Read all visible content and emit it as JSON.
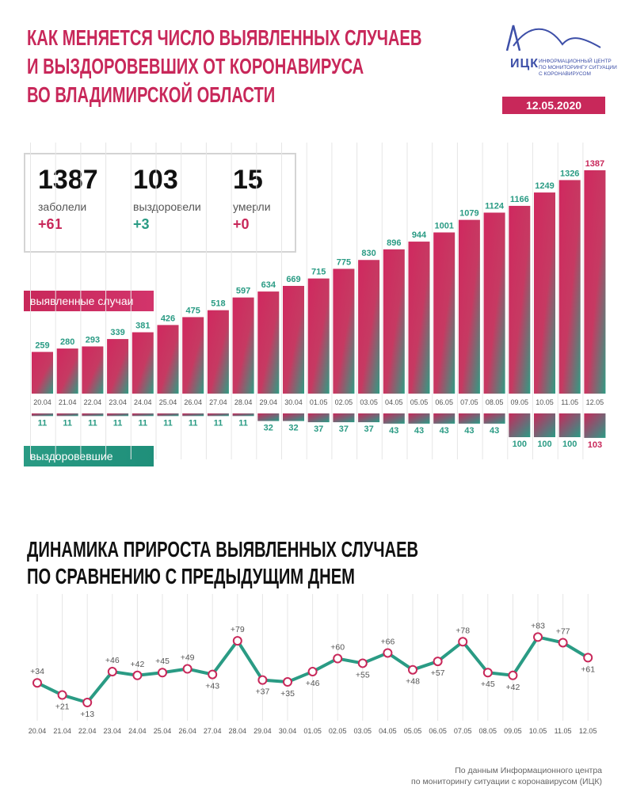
{
  "header": {
    "title_lines": [
      "КАК МЕНЯЕТСЯ ЧИСЛО ВЫЯВЛЕННЫХ СЛУЧАЕВ",
      "И ВЫЗДОРОВЕВШИХ ОТ КОРОНАВИРУСА",
      "ВО ВЛАДИМИРСКОЙ ОБЛАСТИ"
    ],
    "logo_text": "ИЦК",
    "logo_sub_lines": [
      "ИНФОРМАЦИОННЫЙ ЦЕНТР",
      "ПО МОНИТОРИНГУ СИТУАЦИИ",
      "С КОРОНАВИРУСОМ"
    ],
    "date": "12.05.2020"
  },
  "stats": [
    {
      "value": "1387",
      "label": "заболели",
      "delta": "+61"
    },
    {
      "value": "103",
      "label": "выздоровели",
      "delta": "+3"
    },
    {
      "value": "15",
      "label": "умерли",
      "delta": "+0"
    }
  ],
  "legend": {
    "cases": "выявленные случаи",
    "recovered": "выздоровевшие"
  },
  "section2": {
    "title_lines": [
      "ДИНАМИКА ПРИРОСТА ВЫЯВЛЕННЫХ СЛУЧАЕВ",
      "ПО СРАВНЕНИЮ С ПРЕДЫДУЩИМ ДНЕМ"
    ]
  },
  "source_lines": [
    "По данным Информационного центра",
    "по мониторингу ситуации с коронавирусом (ИЦК)"
  ],
  "colors": {
    "red": "#c8285a",
    "teal": "#2a9b84",
    "grid": "#e6e6e6"
  },
  "chart_data": [
    {
      "type": "bar",
      "categories": [
        "20.04",
        "21.04",
        "22.04",
        "23.04",
        "24.04",
        "25.04",
        "26.04",
        "27.04",
        "28.04",
        "29.04",
        "30.04",
        "01.05",
        "02.05",
        "03.05",
        "04.05",
        "05.05",
        "06.05",
        "07.05",
        "08.05",
        "09.05",
        "10.05",
        "11.05",
        "12.05"
      ],
      "series": [
        {
          "name": "выявленные случаи",
          "values": [
            259,
            280,
            293,
            339,
            381,
            426,
            475,
            518,
            597,
            634,
            669,
            715,
            775,
            830,
            896,
            944,
            1001,
            1079,
            1124,
            1166,
            1249,
            1326,
            1387
          ]
        },
        {
          "name": "выздоровевшие",
          "values": [
            11,
            11,
            11,
            11,
            11,
            11,
            11,
            11,
            11,
            32,
            32,
            37,
            37,
            37,
            43,
            43,
            43,
            43,
            43,
            100,
            100,
            100,
            103
          ]
        }
      ],
      "title": "",
      "xlabel": "",
      "ylabel": ""
    },
    {
      "type": "line",
      "categories": [
        "20.04",
        "21.04",
        "22.04",
        "23.04",
        "24.04",
        "25.04",
        "26.04",
        "27.04",
        "28.04",
        "29.04",
        "30.04",
        "01.05",
        "02.05",
        "03.05",
        "04.05",
        "05.05",
        "06.05",
        "07.05",
        "08.05",
        "09.05",
        "10.05",
        "11.05",
        "12.05"
      ],
      "values": [
        34,
        21,
        13,
        46,
        42,
        45,
        49,
        43,
        79,
        37,
        35,
        46,
        60,
        55,
        66,
        48,
        57,
        78,
        45,
        42,
        83,
        77,
        61
      ],
      "labels": [
        "+34",
        "+21",
        "+13",
        "+46",
        "+42",
        "+45",
        "+49",
        "+43",
        "+79",
        "+37",
        "+35",
        "+46",
        "+60",
        "+55",
        "+66",
        "+48",
        "+57",
        "+78",
        "+45",
        "+42",
        "+83",
        "+77",
        "+61"
      ],
      "title": "",
      "xlabel": "",
      "ylabel": ""
    }
  ]
}
